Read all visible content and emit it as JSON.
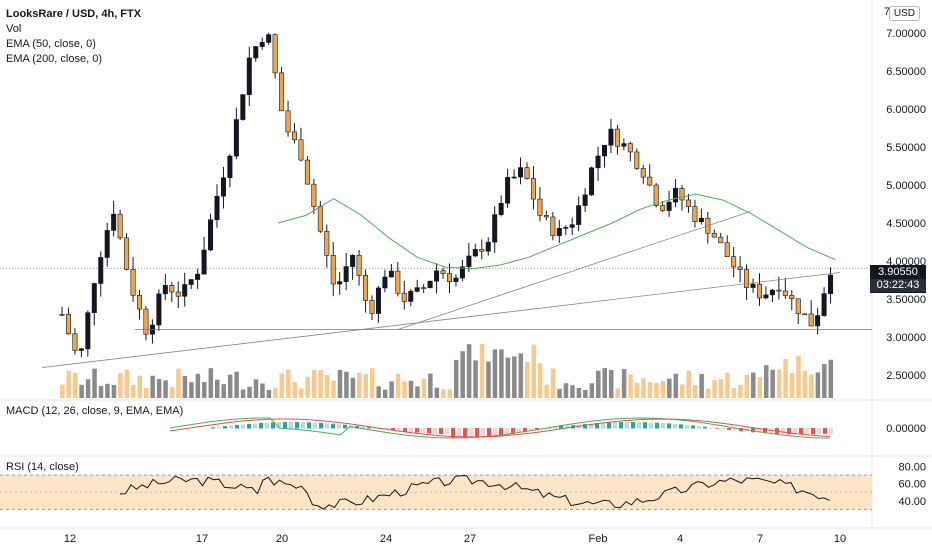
{
  "header": {
    "title": "LooksRare / USD, 4h, FTX",
    "vol_label": "Vol",
    "ema50_label": "EMA (50, close, 0)",
    "ema200_label": "EMA (200, close, 0)",
    "currency": "USD"
  },
  "price_tag": {
    "value": "3.90550",
    "countdown": "03:22:43"
  },
  "chart_data": {
    "type": "candlestick",
    "price_axis": {
      "range": [
        2.2,
        7.3
      ],
      "ticks": [
        "2.50000",
        "3.00000",
        "3.50000",
        "4.00000",
        "4.50000",
        "5.00000",
        "5.50000",
        "6.00000",
        "6.50000",
        "7.00000"
      ],
      "top_partial": "7."
    },
    "x_ticks": [
      "12",
      "17",
      "20",
      "24",
      "27",
      "Feb",
      "4",
      "7",
      "10"
    ],
    "colors": {
      "up": "#131722",
      "down": "#f0a44b",
      "vol_up": "#8a8a8a",
      "vol_down": "#f8c98a",
      "ema50": "#4caf50",
      "macd": "#4caf50",
      "signal": "#e05151",
      "rsi": "#131722",
      "rsi_band": "#fcdcb3"
    },
    "close_path": [
      3.3,
      2.65,
      3.9,
      4.7,
      3.7,
      3.05,
      3.7,
      3.55,
      3.9,
      4.8,
      5.6,
      6.7,
      7.05,
      5.8,
      5.4,
      4.5,
      3.6,
      4.1,
      3.3,
      3.9,
      3.5,
      3.6,
      3.9,
      3.75,
      4.05,
      4.3,
      5.0,
      5.2,
      4.6,
      4.35,
      4.55,
      5.2,
      5.7,
      5.5,
      5.2,
      4.7,
      4.9,
      4.6,
      4.4,
      4.05,
      3.7,
      3.55,
      3.7,
      3.4,
      3.15,
      3.9
    ],
    "ema50_path": [
      4.5,
      4.6,
      4.82,
      4.6,
      4.3,
      4.05,
      3.92,
      3.9,
      3.95,
      4.05,
      4.2,
      4.35,
      4.5,
      4.68,
      4.8,
      4.88,
      4.8,
      4.62,
      4.4,
      4.18,
      4.02
    ],
    "macd": {
      "label": "MACD (12, 26, close, 9, EMA, EMA)",
      "ticks": [
        "0.00000"
      ]
    },
    "rsi": {
      "label": "RSI (14, close)",
      "ticks": [
        "80.00",
        "60.00",
        "40.00"
      ],
      "band": [
        30,
        70
      ]
    }
  }
}
